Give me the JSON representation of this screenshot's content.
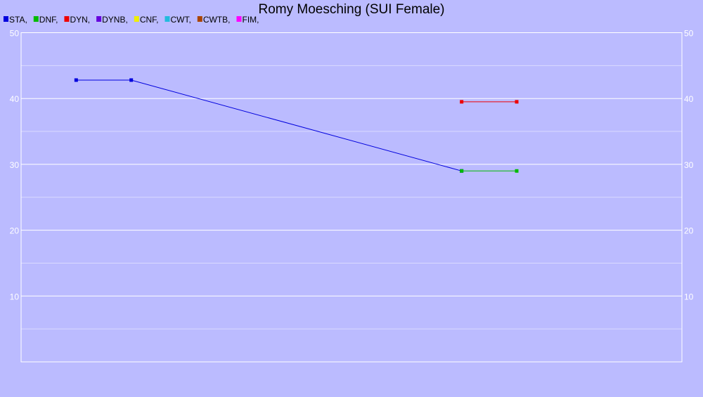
{
  "chart_data": {
    "type": "line",
    "title": "Romy Moesching (SUI Female)",
    "xlabel": "",
    "ylabel": "",
    "ylim": [
      0,
      50
    ],
    "yticks": [
      10,
      20,
      30,
      40,
      50
    ],
    "grid": true,
    "legend_position": "top-left",
    "background_color": "#bbbbff",
    "grid_color": "#ffffff",
    "legend": [
      {
        "label": "STA,",
        "color": "#0000dd"
      },
      {
        "label": "DNF,",
        "color": "#00bb00"
      },
      {
        "label": "DYN,",
        "color": "#ee0000"
      },
      {
        "label": "DYNB,",
        "color": "#6600dd"
      },
      {
        "label": "CNF,",
        "color": "#eeee00"
      },
      {
        "label": "CWT,",
        "color": "#22bbdd"
      },
      {
        "label": "CWTB,",
        "color": "#aa4400"
      },
      {
        "label": "FIM,",
        "color": "#ff00ff"
      }
    ],
    "series": [
      {
        "name": "STA",
        "color": "#0000dd",
        "x": [
          1,
          2,
          8
        ],
        "y": [
          42.8,
          42.8,
          29.0
        ]
      },
      {
        "name": "DNF",
        "color": "#00bb00",
        "x": [
          8,
          9
        ],
        "y": [
          29.0,
          29.0
        ]
      },
      {
        "name": "DYN",
        "color": "#ee0000",
        "x": [
          8,
          9
        ],
        "y": [
          39.5,
          39.5
        ]
      }
    ]
  }
}
